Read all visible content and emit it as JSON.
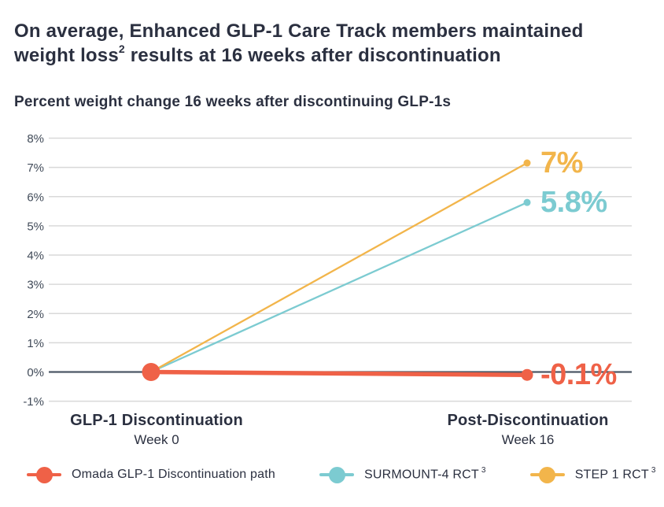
{
  "header": {
    "title_line1": "On average, Enhanced GLP-1 Care Track members maintained",
    "title_line2_pre": "weight loss",
    "title_line2_sup": "2",
    "title_line2_post": " results at 16 weeks after discontinuation"
  },
  "chart_data": {
    "type": "line",
    "title": "Percent weight change 16 weeks after discontinuing GLP-1s",
    "xlabel": "",
    "ylabel": "",
    "ylim": [
      -1,
      8
    ],
    "grid": true,
    "zero_line": true,
    "legend_position": "bottom",
    "y_ticks": [
      {
        "value": 8,
        "label": "8%"
      },
      {
        "value": 7,
        "label": "7%"
      },
      {
        "value": 6,
        "label": "6%"
      },
      {
        "value": 5,
        "label": "5%"
      },
      {
        "value": 4,
        "label": "4%"
      },
      {
        "value": 3,
        "label": "3%"
      },
      {
        "value": 2,
        "label": "2%"
      },
      {
        "value": 1,
        "label": "1%"
      },
      {
        "value": 0,
        "label": "0%"
      },
      {
        "value": -1,
        "label": "-1%"
      }
    ],
    "x_categories": [
      {
        "label": "GLP-1 Discontinuation",
        "sublabel": "Week 0"
      },
      {
        "label": "Post-Discontinuation",
        "sublabel": "Week 16"
      }
    ],
    "series": [
      {
        "name": "Omada GLP-1 Discontinuation path",
        "name_sup": "",
        "color": "#EF6147",
        "values": [
          0,
          -0.1
        ],
        "end_label": "-0.1%",
        "emphasis": true
      },
      {
        "name": "SURMOUNT-4 RCT",
        "name_sup": "3",
        "color": "#7CCBD1",
        "values": [
          0,
          5.8
        ],
        "end_label": "5.8%",
        "emphasis": false
      },
      {
        "name": "STEP 1 RCT",
        "name_sup": "3",
        "color": "#F2B54B",
        "values": [
          0,
          7.15
        ],
        "end_label": "7%",
        "emphasis": false
      }
    ]
  },
  "style": {
    "background": "#FFFFFF",
    "title_color": "#2B3040",
    "grid_color": "#D9D9D9",
    "zero_line_color": "#4C5866",
    "tick_text_color": "#414B59"
  }
}
